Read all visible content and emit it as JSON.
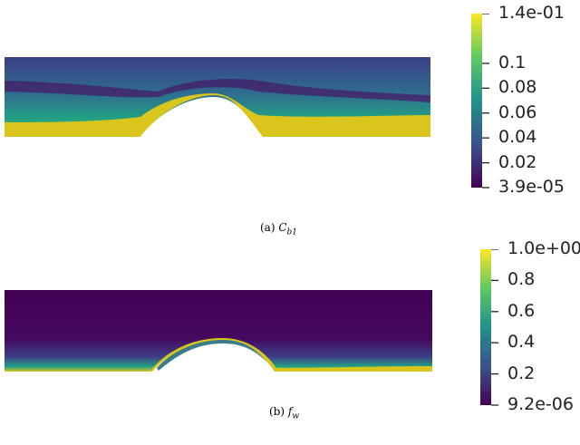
{
  "colors": {
    "viridis_dark": "#440154",
    "viridis_mid": "#21918c",
    "viridis_yellow": "#d9c51c",
    "tick": "#222222"
  },
  "chart_data": [
    {
      "type": "heatmap",
      "panel": "a",
      "caption_prefix": "(a)",
      "caption_symbol": "C",
      "caption_sub": "b1",
      "colormap": "viridis",
      "colorbar": {
        "min_label": "3.9e-05",
        "max_label": "1.4e-01",
        "ticks": [
          "1.4e-01",
          "0.1",
          "0.08",
          "0.06",
          "0.04",
          "0.02",
          "3.9e-05"
        ],
        "tick_values": [
          0.14,
          0.1,
          0.08,
          0.06,
          0.04,
          0.02,
          3.9e-05
        ],
        "range": [
          3.9e-05,
          0.14
        ]
      }
    },
    {
      "type": "heatmap",
      "panel": "b",
      "caption_prefix": "(b)",
      "caption_symbol": "f",
      "caption_sub": "w",
      "colormap": "viridis",
      "colorbar": {
        "min_label": "9.2e-06",
        "max_label": "1.0e+00",
        "ticks": [
          "1.0e+00",
          "0.8",
          "0.6",
          "0.4",
          "0.2",
          "9.2e-06"
        ],
        "tick_values": [
          1.0,
          0.8,
          0.6,
          0.4,
          0.2,
          9.2e-06
        ],
        "range": [
          9.2e-06,
          1.0
        ]
      }
    }
  ]
}
